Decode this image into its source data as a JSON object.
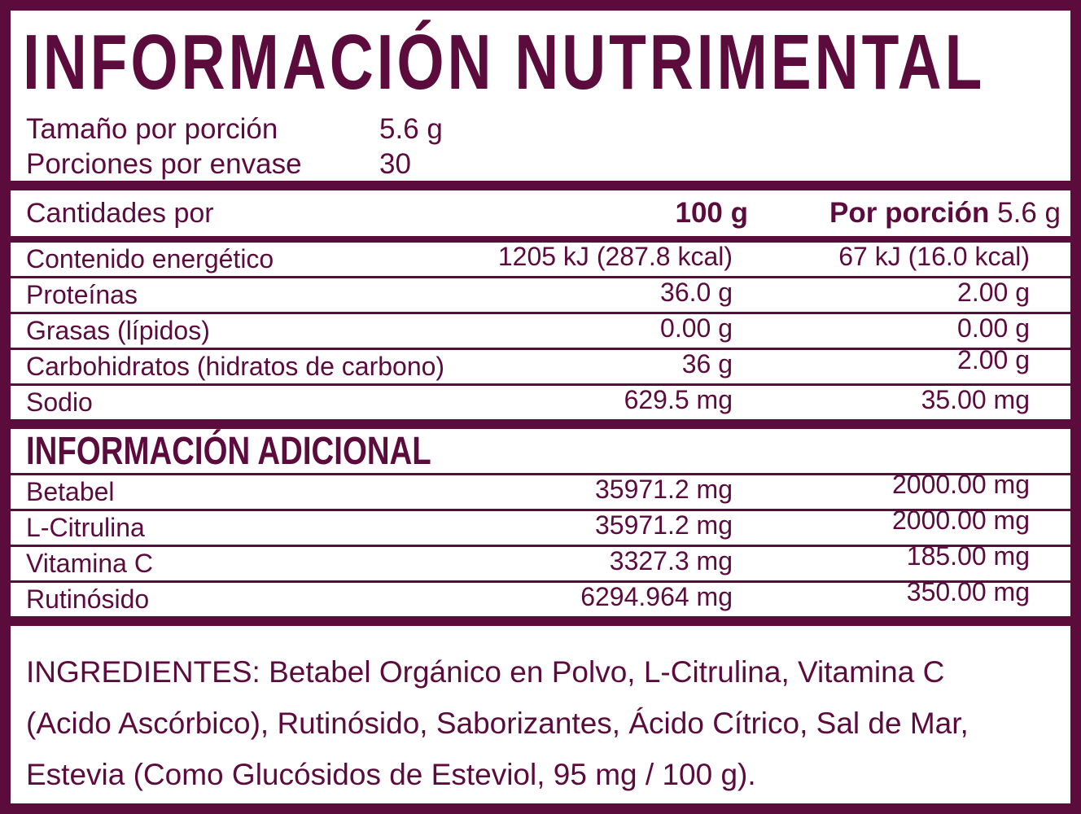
{
  "colors": {
    "accent": "#5c0b3d",
    "background": "#ffffff"
  },
  "header": {
    "title": "INFORMACIÓN NUTRIMENTAL",
    "serving_size_label": "Tamaño por porción",
    "serving_size_value": "5.6 g",
    "servings_label": "Porciones por envase",
    "servings_value": "30"
  },
  "main_table": {
    "header": {
      "label": "Cantidades por",
      "col_100g": "100 g",
      "col_porcion_bold": "Por porción",
      "col_porcion_value": "5.6 g"
    },
    "rows": [
      {
        "label": "Contenido energético",
        "per100": "1205 kJ (287.8 kcal)",
        "porcion": "67 kJ (16.0 kcal)"
      },
      {
        "label": "Proteínas",
        "per100": "36.0 g",
        "porcion": "2.00 g"
      },
      {
        "label": "Grasas (lípidos)",
        "per100": "0.00 g",
        "porcion": "0.00 g"
      },
      {
        "label": "Carbohidratos (hidratos de carbono)",
        "per100": "36 g",
        "porcion": "2.00 g"
      },
      {
        "label": "Sodio",
        "per100": "629.5 mg",
        "porcion": "35.00 mg"
      }
    ]
  },
  "additional": {
    "title": "INFORMACIÓN ADICIONAL",
    "rows": [
      {
        "label": "Betabel",
        "per100": "35971.2 mg",
        "porcion": "2000.00 mg"
      },
      {
        "label": "L-Citrulina",
        "per100": "35971.2 mg",
        "porcion": "2000.00 mg"
      },
      {
        "label": "Vitamina C",
        "per100": "3327.3 mg",
        "porcion": "185.00 mg"
      },
      {
        "label": "Rutinósido",
        "per100": "6294.964 mg",
        "porcion": "350.00 mg"
      }
    ]
  },
  "ingredients": {
    "text": "INGREDIENTES: Betabel Orgánico en Polvo, L-Citrulina, Vitamina C\n(Acido Ascórbico), Rutinósido, Saborizantes, Ácido Cítrico, Sal de Mar,\nEstevia (Como Glucósidos de Esteviol, 95 mg / 100 g)."
  }
}
